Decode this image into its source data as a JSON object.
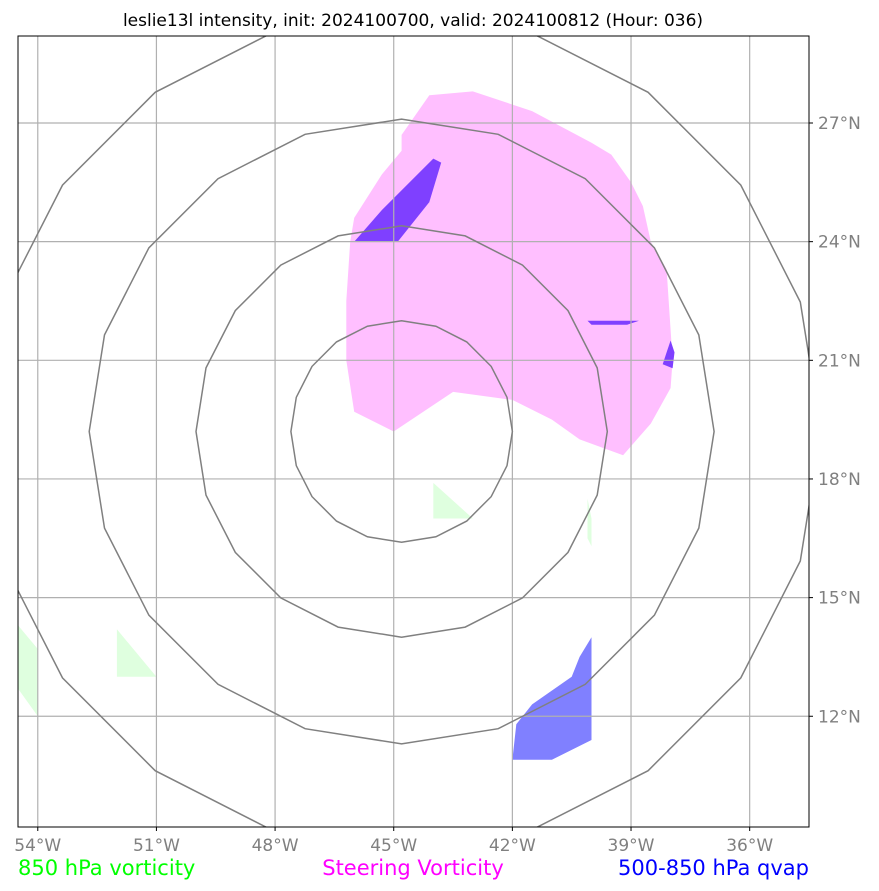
{
  "chart_data": {
    "type": "map-contour",
    "title": "leslie13l intensity, init: 2024100700, valid: 2024100812 (Hour: 036)",
    "x_ticks": [
      {
        "lon": -54,
        "label": "54°W"
      },
      {
        "lon": -51,
        "label": "51°W"
      },
      {
        "lon": -48,
        "label": "48°W"
      },
      {
        "lon": -45,
        "label": "45°W"
      },
      {
        "lon": -42,
        "label": "42°W"
      },
      {
        "lon": -39,
        "label": "39°W"
      },
      {
        "lon": -36,
        "label": "36°W"
      }
    ],
    "y_ticks": [
      {
        "lat": 27,
        "label": "27°N"
      },
      {
        "lat": 24,
        "label": "24°N"
      },
      {
        "lat": 21,
        "label": "21°N"
      },
      {
        "lat": 18,
        "label": "18°N"
      },
      {
        "lat": 15,
        "label": "15°N"
      },
      {
        "lat": 12,
        "label": "12°N"
      }
    ],
    "xlim": [
      -54.5,
      -34.5
    ],
    "ylim": [
      9.2,
      29.2
    ],
    "grid": true,
    "center": {
      "lon": -44.8,
      "lat": 19.2
    },
    "range_rings_deg": [
      2.8,
      5.2,
      7.9,
      10.6
    ],
    "colors": {
      "850_vorticity": "#00ff00",
      "steering_vorticity": "#ff00ff",
      "qvap": "#0000ff",
      "grid": "#b0b0b0",
      "rings": "#808080"
    },
    "legend": [
      {
        "label": "850 hPa vorticity",
        "color": "#00ff00"
      },
      {
        "label": "Steering Vorticity",
        "color": "#ff00ff"
      },
      {
        "label": "500-850 hPa qvap",
        "color": "#0000ff"
      }
    ],
    "regions": [
      {
        "series": "steering_vorticity",
        "fill": "#ffbfff",
        "points": [
          [
            -44.8,
            26.7
          ],
          [
            -44.1,
            27.7
          ],
          [
            -43.0,
            27.8
          ],
          [
            -41.5,
            27.3
          ],
          [
            -40.0,
            26.5
          ],
          [
            -39.5,
            26.2
          ],
          [
            -39.0,
            25.5
          ],
          [
            -38.7,
            24.9
          ],
          [
            -38.5,
            24.0
          ],
          [
            -38.1,
            23.3
          ],
          [
            -37.95,
            21.0
          ],
          [
            -38.0,
            20.3
          ],
          [
            -38.5,
            19.4
          ],
          [
            -39.2,
            18.6
          ],
          [
            -40.3,
            19.0
          ],
          [
            -41.0,
            19.5
          ],
          [
            -42.0,
            20.0
          ],
          [
            -43.5,
            20.2
          ],
          [
            -45.0,
            19.2
          ],
          [
            -46.0,
            19.7
          ],
          [
            -46.2,
            21.0
          ],
          [
            -46.2,
            22.5
          ],
          [
            -46.1,
            24.0
          ],
          [
            -46.0,
            24.6
          ],
          [
            -45.3,
            25.7
          ],
          [
            -44.8,
            26.3
          ]
        ]
      },
      {
        "series": "steering_vorticity",
        "fill": "#7f40ff",
        "points": [
          [
            -44.0,
            26.1
          ],
          [
            -43.8,
            26.0
          ],
          [
            -44.1,
            25.0
          ],
          [
            -44.9,
            24.0
          ],
          [
            -46.0,
            24.0
          ],
          [
            -45.3,
            24.8
          ]
        ]
      },
      {
        "series": "steering_vorticity",
        "fill": "#7f40ff",
        "points": [
          [
            -40.1,
            22.0
          ],
          [
            -38.8,
            22.0
          ],
          [
            -39.1,
            21.9
          ],
          [
            -40.0,
            21.9
          ]
        ]
      },
      {
        "series": "steering_vorticity",
        "fill": "#7f40ff",
        "points": [
          [
            -38.0,
            21.5
          ],
          [
            -37.9,
            21.2
          ],
          [
            -37.95,
            20.8
          ],
          [
            -38.2,
            20.9
          ],
          [
            -38.1,
            21.2
          ]
        ]
      },
      {
        "series": "850_vorticity",
        "fill": "#dfffdf",
        "points": [
          [
            -44.0,
            17.9
          ],
          [
            -43.0,
            17.0
          ],
          [
            -44.0,
            17.0
          ]
        ]
      },
      {
        "series": "850_vorticity",
        "fill": "#dfffdf",
        "points": [
          [
            -40.1,
            17.5
          ],
          [
            -40.0,
            17.0
          ],
          [
            -40.0,
            16.3
          ],
          [
            -40.1,
            16.5
          ]
        ]
      },
      {
        "series": "850_vorticity",
        "fill": "#dfffdf",
        "points": [
          [
            -52.0,
            14.2
          ],
          [
            -51.0,
            13.0
          ],
          [
            -52.0,
            13.0
          ]
        ]
      },
      {
        "series": "850_vorticity",
        "fill": "#dfffdf",
        "points": [
          [
            -54.5,
            14.3
          ],
          [
            -54.0,
            13.7
          ],
          [
            -54.0,
            12.0
          ],
          [
            -54.5,
            12.7
          ]
        ]
      },
      {
        "series": "qvap",
        "fill": "#8080ff",
        "points": [
          [
            -40.0,
            14.0
          ],
          [
            -40.0,
            11.4
          ],
          [
            -41.0,
            10.9
          ],
          [
            -42.0,
            10.9
          ],
          [
            -41.9,
            11.8
          ],
          [
            -41.5,
            12.3
          ],
          [
            -40.5,
            13.0
          ],
          [
            -40.3,
            13.5
          ]
        ]
      }
    ]
  }
}
